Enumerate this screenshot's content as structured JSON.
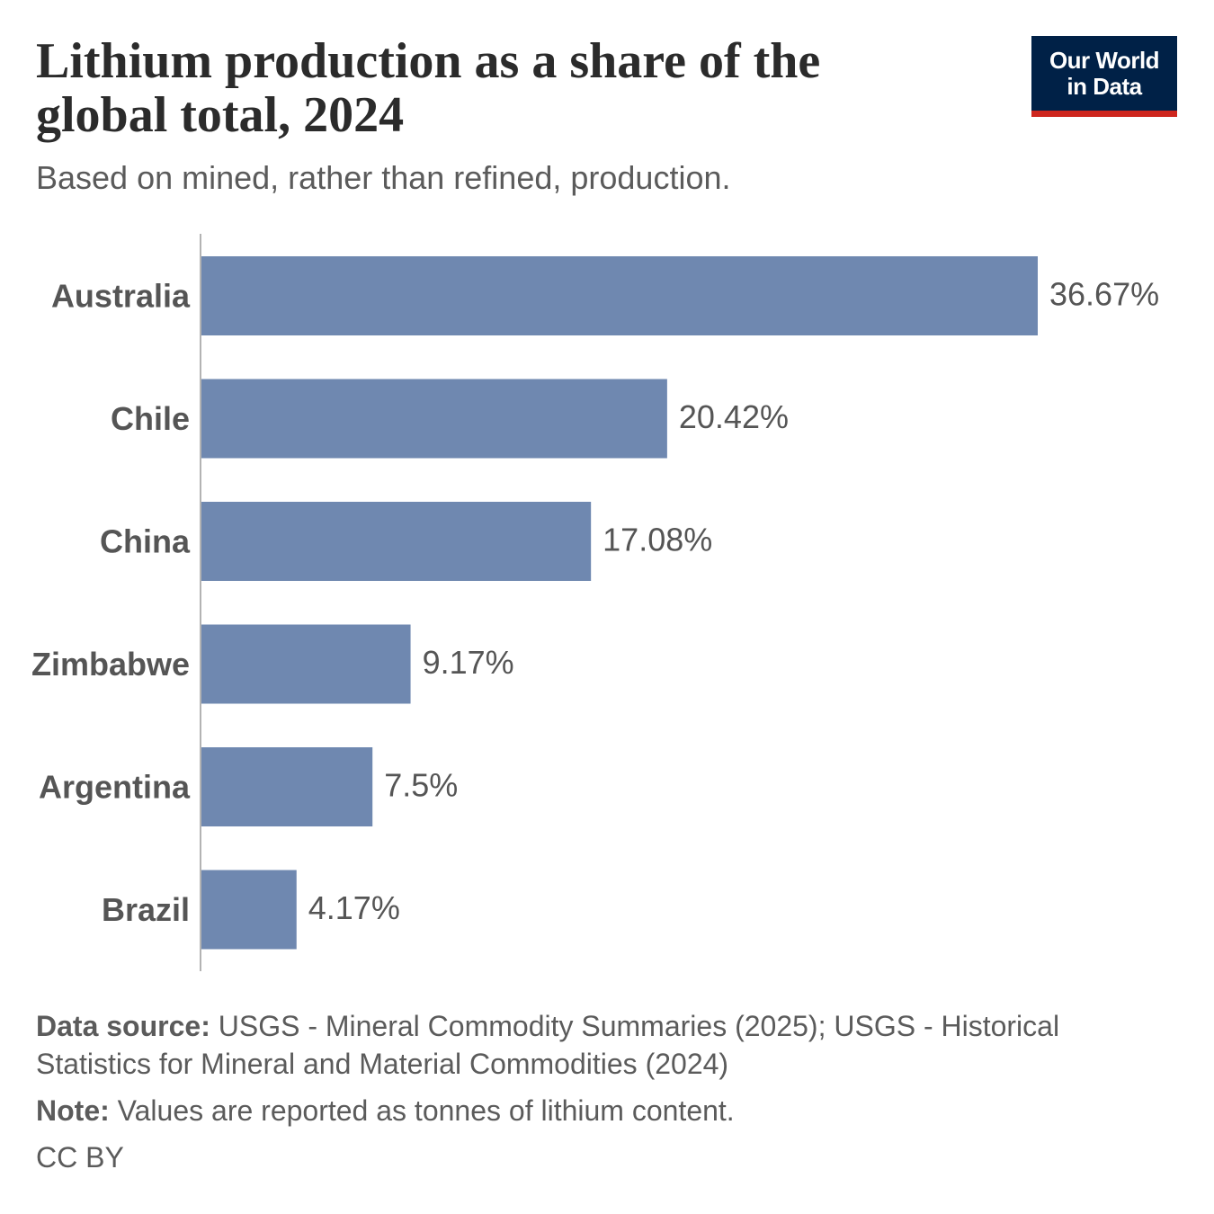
{
  "header": {
    "title": "Lithium production as a share of the global total, 2024",
    "subtitle": "Based on mined, rather than refined, production.",
    "logo_line1": "Our World",
    "logo_line2": "in Data"
  },
  "colors": {
    "bar": "#6f88b0",
    "logo_bg": "#002147",
    "logo_accent": "#ce261e"
  },
  "chart_data": {
    "type": "bar",
    "orientation": "horizontal",
    "categories": [
      "Australia",
      "Chile",
      "China",
      "Zimbabwe",
      "Argentina",
      "Brazil"
    ],
    "values": [
      36.67,
      20.42,
      17.08,
      9.17,
      7.5,
      4.17
    ],
    "value_labels": [
      "36.67%",
      "20.42%",
      "17.08%",
      "9.17%",
      "7.5%",
      "4.17%"
    ],
    "unit": "%",
    "xlim": [
      0,
      36.67
    ],
    "grid": false,
    "legend": "none"
  },
  "footer": {
    "source_label": "Data source:",
    "source_text": " USGS - Mineral Commodity Summaries (2025); USGS - Historical Statistics for Mineral and Material Commodities (2024)",
    "note_label": "Note:",
    "note_text": " Values are reported as tonnes of lithium content.",
    "license": "CC BY"
  }
}
